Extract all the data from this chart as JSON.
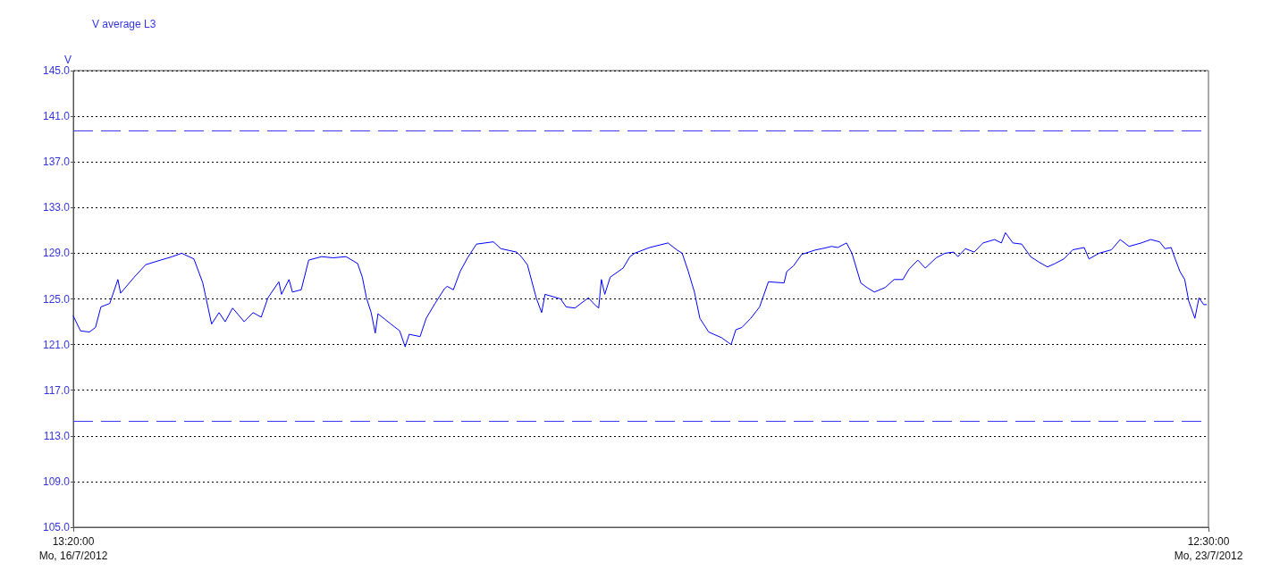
{
  "chart_data": {
    "type": "line",
    "title": "V average L3",
    "ylabel": "V",
    "xlim": [
      "2012-07-16T13:20",
      "2012-07-23T12:30"
    ],
    "xticks": [
      {
        "value": "2012-07-16T13:20",
        "label": "13:20:00\nMo, 16/7/2012"
      },
      {
        "value": "2012-07-23T12:30",
        "label": "12:30:00\nMo, 23/7/2012"
      }
    ],
    "ylim": [
      105,
      145
    ],
    "yticks": [
      {
        "value": 105,
        "label": "105.0"
      },
      {
        "value": 109,
        "label": "109.0"
      },
      {
        "value": 113,
        "label": "113.0"
      },
      {
        "value": 117,
        "label": "117.0"
      },
      {
        "value": 121,
        "label": "121.0"
      },
      {
        "value": 125,
        "label": "125.0"
      },
      {
        "value": 129,
        "label": "129.0"
      },
      {
        "value": 133,
        "label": "133.0"
      },
      {
        "value": 137,
        "label": "137.0"
      },
      {
        "value": 141,
        "label": "141.0"
      },
      {
        "value": 145,
        "label": "145.0"
      }
    ],
    "grid": "y",
    "marker": "none",
    "line_style": "solid",
    "ref_lines": [
      {
        "axis": "y",
        "value": 139.7,
        "color": "#3b3bf5",
        "line_style": "dashed"
      },
      {
        "axis": "y",
        "value": 114.3,
        "color": "#3b3bf5",
        "line_style": "dashed"
      }
    ],
    "series": [
      {
        "color": "#0000ff",
        "x": [
          "2012-07-16T13:20",
          "2012-07-16T14:24",
          "2012-07-16T15:42",
          "2012-07-16T16:36",
          "2012-07-16T17:24",
          "2012-07-16T18:42",
          "2012-07-16T19:54",
          "2012-07-16T20:18",
          "2012-07-16T22:18",
          "2012-07-17T00:00",
          "2012-07-17T02:12",
          "2012-07-17T03:54",
          "2012-07-17T05:18",
          "2012-07-17T07:06",
          "2012-07-17T08:24",
          "2012-07-17T09:42",
          "2012-07-17T10:48",
          "2012-07-17T11:42",
          "2012-07-17T12:48",
          "2012-07-17T14:30",
          "2012-07-17T15:48",
          "2012-07-17T17:00",
          "2012-07-17T18:00",
          "2012-07-17T19:36",
          "2012-07-17T20:00",
          "2012-07-17T21:06",
          "2012-07-17T21:36",
          "2012-07-17T22:54",
          "2012-07-18T00:00",
          "2012-07-18T01:54",
          "2012-07-18T03:36",
          "2012-07-18T05:30",
          "2012-07-18T07:12",
          "2012-07-18T07:54",
          "2012-07-18T08:30",
          "2012-07-18T09:12",
          "2012-07-18T09:48",
          "2012-07-18T10:12",
          "2012-07-18T12:06",
          "2012-07-18T13:24",
          "2012-07-18T14:12",
          "2012-07-18T14:48",
          "2012-07-18T16:24",
          "2012-07-18T17:18",
          "2012-07-18T18:36",
          "2012-07-18T20:00",
          "2012-07-18T20:24",
          "2012-07-18T21:18",
          "2012-07-18T22:18",
          "2012-07-18T23:24",
          "2012-07-19T00:42",
          "2012-07-19T03:12",
          "2012-07-19T04:18",
          "2012-07-19T06:36",
          "2012-07-19T07:18",
          "2012-07-19T08:12",
          "2012-07-19T09:30",
          "2012-07-19T10:18",
          "2012-07-19T10:48",
          "2012-07-19T13:06",
          "2012-07-19T13:54",
          "2012-07-19T15:12",
          "2012-07-19T17:12",
          "2012-07-19T18:06",
          "2012-07-19T18:42",
          "2012-07-19T19:06",
          "2012-07-19T19:36",
          "2012-07-19T20:24",
          "2012-07-19T22:18",
          "2012-07-19T23:18",
          "2012-07-20T00:00",
          "2012-07-20T02:12",
          "2012-07-20T04:54",
          "2012-07-20T06:12",
          "2012-07-20T07:00",
          "2012-07-20T07:54",
          "2012-07-20T08:48",
          "2012-07-20T09:36",
          "2012-07-20T10:54",
          "2012-07-20T12:48",
          "2012-07-20T14:12",
          "2012-07-20T14:54",
          "2012-07-20T15:48",
          "2012-07-20T17:06",
          "2012-07-20T18:24",
          "2012-07-20T19:42",
          "2012-07-20T22:00",
          "2012-07-20T22:24",
          "2012-07-20T23:24",
          "2012-07-21T00:36",
          "2012-07-21T02:42",
          "2012-07-21T03:36",
          "2012-07-21T05:00",
          "2012-07-21T05:54",
          "2012-07-21T07:12",
          "2012-07-21T08:00",
          "2012-07-21T09:18",
          "2012-07-21T10:12",
          "2012-07-21T11:18",
          "2012-07-21T12:54",
          "2012-07-21T14:12",
          "2012-07-21T15:30",
          "2012-07-21T16:24",
          "2012-07-21T17:42",
          "2012-07-21T18:48",
          "2012-07-21T20:24",
          "2012-07-21T21:42",
          "2012-07-21T23:00",
          "2012-07-21T23:36",
          "2012-07-22T00:42",
          "2012-07-22T02:00",
          "2012-07-22T03:18",
          "2012-07-22T05:00",
          "2012-07-22T06:00",
          "2012-07-22T06:36",
          "2012-07-22T07:42",
          "2012-07-22T09:00",
          "2012-07-22T10:18",
          "2012-07-22T11:36",
          "2012-07-22T12:48",
          "2012-07-22T13:54",
          "2012-07-22T15:12",
          "2012-07-22T16:30",
          "2012-07-22T18:12",
          "2012-07-22T18:54",
          "2012-07-22T20:24",
          "2012-07-22T22:12",
          "2012-07-22T23:30",
          "2012-07-23T00:48",
          "2012-07-23T02:36",
          "2012-07-23T04:00",
          "2012-07-23T05:18",
          "2012-07-23T06:06",
          "2012-07-23T07:00",
          "2012-07-23T07:36",
          "2012-07-23T08:18",
          "2012-07-23T09:00",
          "2012-07-23T09:36",
          "2012-07-23T10:30",
          "2012-07-23T11:06",
          "2012-07-23T11:48",
          "2012-07-23T12:12"
        ],
        "values": [
          123.5,
          122.2,
          122.1,
          122.5,
          124.3,
          124.6,
          126.7,
          125.5,
          126.9,
          128.0,
          128.4,
          128.7,
          129.0,
          128.5,
          126.4,
          122.8,
          123.8,
          123.0,
          124.2,
          123.0,
          123.8,
          123.4,
          125.1,
          126.5,
          125.4,
          126.7,
          125.6,
          125.8,
          128.4,
          128.7,
          128.6,
          128.7,
          128.1,
          126.9,
          125.1,
          123.8,
          122.0,
          123.7,
          122.8,
          122.2,
          120.8,
          121.9,
          121.7,
          123.3,
          124.6,
          125.9,
          126.1,
          125.8,
          127.4,
          128.6,
          129.8,
          130.0,
          129.4,
          129.1,
          128.7,
          128.0,
          125.1,
          123.8,
          125.4,
          125.0,
          124.3,
          124.2,
          125.1,
          124.5,
          124.2,
          126.7,
          125.4,
          126.9,
          127.7,
          128.7,
          129.0,
          129.5,
          129.9,
          129.3,
          129.0,
          127.4,
          125.6,
          123.3,
          122.1,
          121.6,
          121.0,
          122.3,
          122.5,
          123.3,
          124.3,
          126.5,
          126.4,
          127.4,
          127.9,
          128.9,
          129.3,
          129.4,
          129.6,
          129.5,
          129.9,
          129.0,
          126.4,
          126.0,
          125.6,
          126.0,
          126.7,
          126.7,
          127.6,
          128.4,
          127.7,
          128.6,
          129.0,
          129.1,
          128.7,
          129.4,
          129.1,
          129.9,
          130.2,
          129.9,
          130.8,
          129.9,
          129.8,
          128.7,
          128.2,
          127.8,
          128.1,
          128.5,
          129.3,
          129.5,
          128.5,
          129.0,
          129.3,
          130.2,
          129.6,
          129.9,
          130.2,
          130.0,
          129.4,
          129.5,
          128.5,
          127.4,
          126.7,
          124.8,
          123.3,
          125.1,
          124.5,
          124.5
        ]
      }
    ]
  }
}
